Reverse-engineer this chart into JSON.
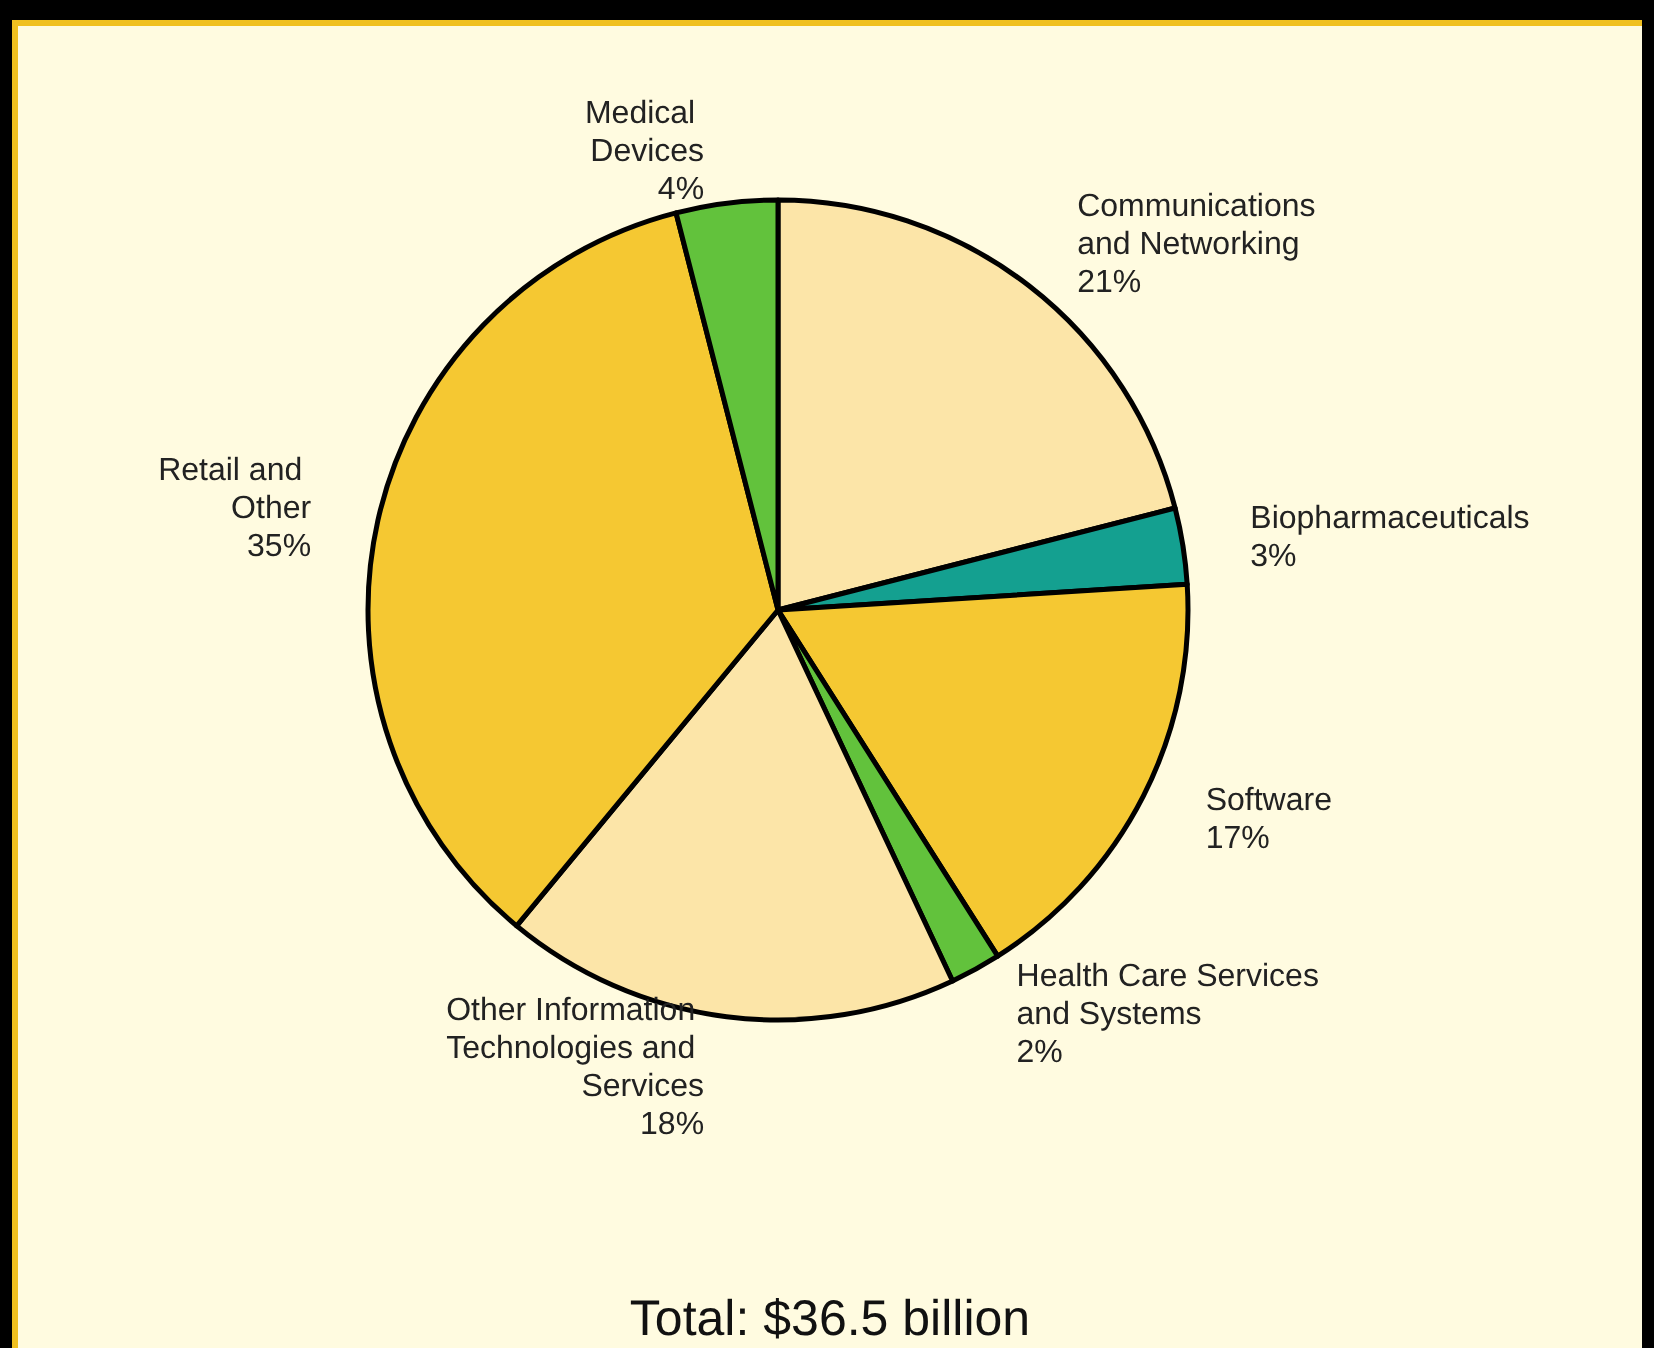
{
  "chart_data": {
    "type": "pie",
    "categories": [
      "Communications and Networking",
      "Biopharmaceuticals",
      "Software",
      "Health Care Services and Systems",
      "Other Information Technologies and Services",
      "Retail and Other",
      "Medical Devices"
    ],
    "values": [
      21,
      3,
      17,
      2,
      18,
      35,
      4
    ],
    "colors": [
      "#fce5a8",
      "#14a090",
      "#f5c832",
      "#62c23c",
      "#fce5a8",
      "#f5c832",
      "#62c23c"
    ],
    "value_labels": [
      "21%",
      "3%",
      "17%",
      "2%",
      "18%",
      "35%",
      "4%"
    ],
    "legend": false,
    "annotations": [
      "Total: $36.5 billion"
    ]
  }
}
